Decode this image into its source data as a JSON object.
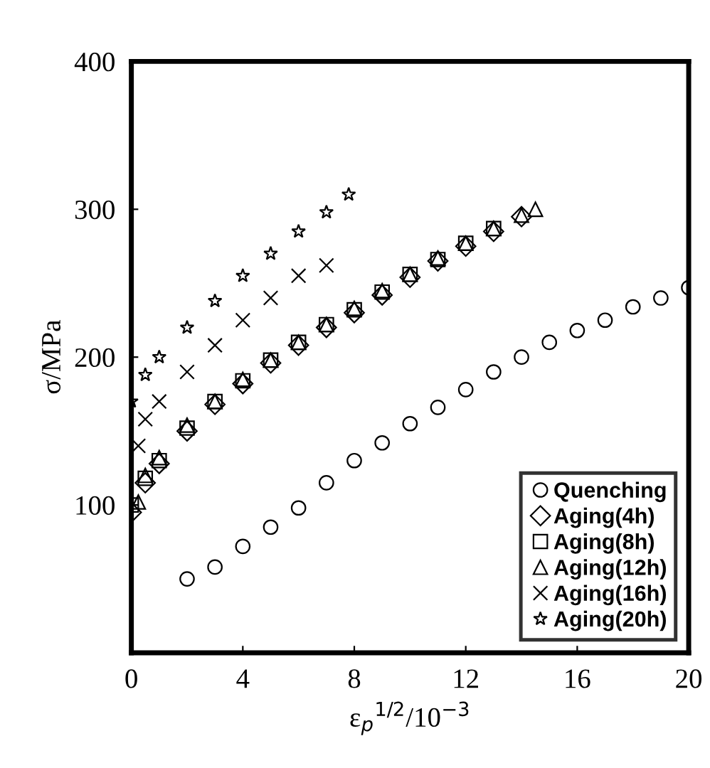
{
  "chart_data": {
    "type": "scatter",
    "xlabel": "ε$_{p}$$^{1/2}$/10$^{−3}$",
    "ylabel": "σ/MPa",
    "xlim": [
      0,
      20
    ],
    "ylim": [
      0,
      400
    ],
    "xticks": [
      0,
      4,
      8,
      12,
      16,
      20
    ],
    "yticks": [
      {
        "value": 0,
        "label": null
      },
      100,
      200,
      300,
      400
    ],
    "grid": false,
    "legend": "bottom right",
    "series": [
      {
        "name": "Quenching",
        "color": "#000000",
        "marker": "circle",
        "x": [
          2,
          3,
          4,
          5,
          6,
          7,
          8,
          9,
          10,
          11,
          12,
          13,
          14,
          15,
          16,
          17,
          18,
          19,
          20
        ],
        "values": [
          50,
          58,
          72,
          85,
          98,
          115,
          130,
          142,
          155,
          166,
          178,
          190,
          200,
          210,
          218,
          225,
          234,
          240,
          247
        ]
      },
      {
        "name": "Aging(4h)",
        "color": "#000000",
        "marker": "diamond",
        "x": [
          0,
          0.5,
          1,
          2,
          3,
          4,
          5,
          6,
          7,
          8,
          9,
          10,
          11,
          12,
          13,
          14
        ],
        "values": [
          95,
          115,
          128,
          150,
          168,
          182,
          196,
          208,
          220,
          230,
          242,
          254,
          265,
          275,
          285,
          295
        ]
      },
      {
        "name": "Aging(8h)",
        "color": "#000000",
        "marker": "square",
        "x": [
          0,
          0.5,
          1,
          2,
          3,
          4,
          5,
          6,
          7,
          8,
          9,
          10,
          11,
          12,
          13
        ],
        "values": [
          100,
          118,
          130,
          152,
          170,
          184,
          198,
          210,
          222,
          232,
          244,
          256,
          266,
          277,
          287
        ]
      },
      {
        "name": "Aging(12h)",
        "color": "#000000",
        "marker": "triangle",
        "x": [
          0.25,
          0.5,
          1,
          2,
          3,
          4,
          5,
          6,
          7,
          8,
          9,
          10,
          11,
          12,
          13,
          14,
          14.5
        ],
        "values": [
          102,
          120,
          132,
          154,
          170,
          185,
          198,
          210,
          222,
          233,
          245,
          256,
          267,
          277,
          287,
          296,
          300
        ]
      },
      {
        "name": "Aging(16h)",
        "color": "#000000",
        "marker": "cross",
        "x": [
          0.25,
          0.5,
          1,
          2,
          3,
          4,
          5,
          6,
          7
        ],
        "values": [
          140,
          158,
          170,
          190,
          208,
          225,
          240,
          255,
          262
        ]
      },
      {
        "name": "Aging(20h)",
        "color": "#000000",
        "marker": "star",
        "x": [
          0,
          0.5,
          1,
          2,
          3,
          4,
          5,
          6,
          7,
          7.8
        ],
        "values": [
          170,
          188,
          200,
          220,
          238,
          255,
          270,
          285,
          298,
          310
        ]
      }
    ]
  }
}
